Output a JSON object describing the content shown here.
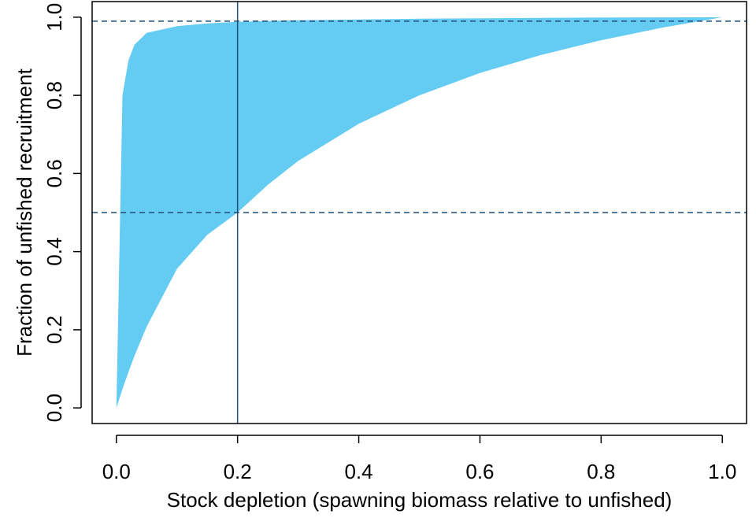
{
  "chart_data": {
    "type": "area",
    "title": "",
    "xlabel": "Stock depletion (spawning biomass relative to unfished)",
    "ylabel": "Fraction of unfished recruitment",
    "xlim": [
      -0.04,
      1.04
    ],
    "ylim": [
      -0.04,
      1.04
    ],
    "x_ticks": [
      0.0,
      0.2,
      0.4,
      0.6,
      0.8,
      1.0
    ],
    "y_ticks": [
      0.0,
      0.2,
      0.4,
      0.6,
      0.8,
      1.0
    ],
    "x_tick_labels": [
      "0.0",
      "0.2",
      "0.4",
      "0.6",
      "0.8",
      "1.0"
    ],
    "y_tick_labels": [
      "0.0",
      "0.2",
      "0.4",
      "0.6",
      "0.8",
      "1.0"
    ],
    "grid": false,
    "band": {
      "name": "",
      "color": "#64CBF2",
      "x": [
        0.0,
        0.01,
        0.02,
        0.03,
        0.05,
        0.1,
        0.15,
        0.2,
        0.25,
        0.3,
        0.4,
        0.5,
        0.6,
        0.7,
        0.8,
        0.9,
        1.0
      ],
      "upper": [
        0.0,
        0.8,
        0.89,
        0.93,
        0.96,
        0.977,
        0.984,
        0.988,
        0.99,
        0.992,
        0.994,
        0.996,
        0.997,
        0.998,
        0.999,
        0.9995,
        1.0
      ],
      "lower": [
        0.0,
        0.048,
        0.092,
        0.134,
        0.208,
        0.356,
        0.443,
        0.5,
        0.571,
        0.632,
        0.727,
        0.8,
        0.857,
        0.903,
        0.941,
        0.973,
        1.0
      ]
    },
    "reference_lines": {
      "color": "#1F4E79",
      "vertical_x": 0.2,
      "horizontal_dashed_y": [
        0.99,
        0.5
      ]
    }
  }
}
